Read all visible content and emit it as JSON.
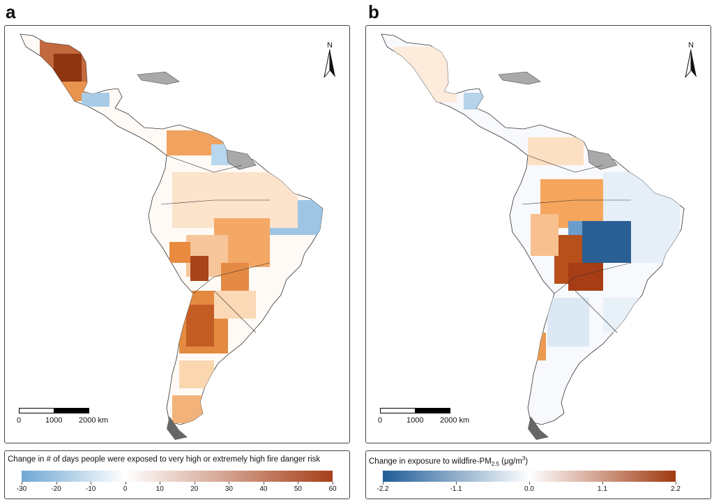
{
  "panels": [
    {
      "letter": "a",
      "north_label": "N",
      "scale": {
        "labels": [
          "0",
          "1000",
          "2000 km"
        ]
      },
      "legend": {
        "title": "Change in # of days people were exposed to very high or extremely high fire danger risk",
        "ticks": [
          "-30",
          "-20",
          "-10",
          "0",
          "10",
          "20",
          "30",
          "40",
          "50",
          "60"
        ],
        "range": [
          -30,
          60
        ],
        "colors": {
          "low": "#6fa7d3",
          "mid": "#ffffff",
          "high": "#a6401a"
        }
      }
    },
    {
      "letter": "b",
      "north_label": "N",
      "scale": {
        "labels": [
          "0",
          "1000",
          "2000 km"
        ]
      },
      "legend": {
        "title_main": "Change in exposure to wildfire-PM",
        "title_sub": "2.5",
        "title_unit_open": " (μg/m",
        "title_sup": "3",
        "title_unit_close": ")",
        "ticks": [
          "-2.2",
          "-1.1",
          "0.0",
          "1.1",
          "2.2"
        ],
        "range": [
          -2.2,
          2.2
        ],
        "colors": {
          "low": "#1f5d97",
          "mid": "#ffffff",
          "high": "#a13a12"
        }
      }
    }
  ],
  "palette": {
    "land_gray": "#a9a9a9",
    "border": "#333333"
  }
}
